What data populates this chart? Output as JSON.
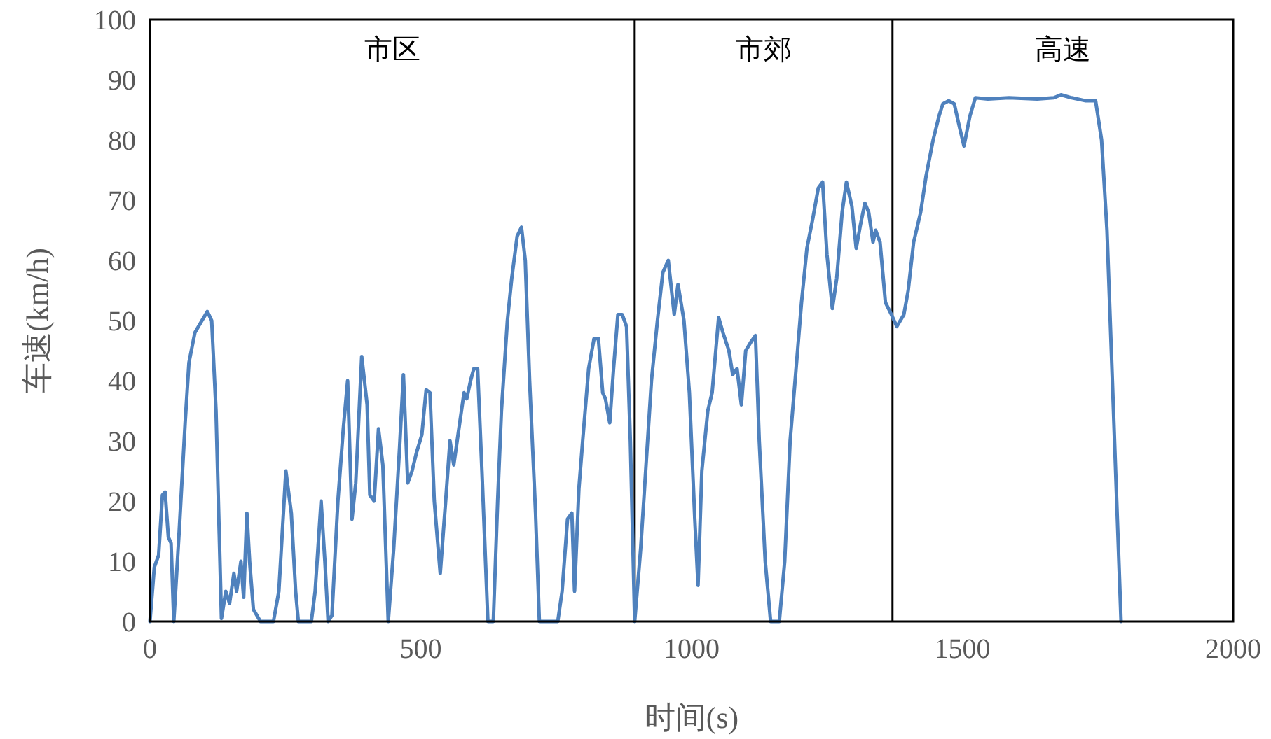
{
  "chart_data": {
    "type": "line",
    "xlabel": "时间(s)",
    "ylabel": "车速(km/h)",
    "xlim": [
      0,
      2000
    ],
    "xticks": [
      0,
      500,
      1000,
      1500,
      2000
    ],
    "ylim": [
      0,
      100
    ],
    "yticks": [
      0,
      10,
      20,
      30,
      40,
      50,
      60,
      70,
      80,
      90,
      100
    ],
    "grid": false,
    "marker": "none",
    "line_style": "solid",
    "ref_lines": [
      {
        "axis": "x",
        "value": 895,
        "color": "#000000"
      },
      {
        "axis": "x",
        "value": 1371,
        "color": "#000000"
      }
    ],
    "annotations": [
      "市区",
      "市郊",
      "高速"
    ],
    "series": [
      {
        "color": "#4f81bd",
        "x": [
          0,
          8,
          16,
          23,
          28,
          34,
          39,
          44,
          54,
          65,
          72,
          83,
          96,
          106,
          114,
          122,
          132,
          140,
          147,
          155,
          160,
          168,
          173,
          179,
          184,
          191,
          204,
          228,
          238,
          251,
          261,
          269,
          274,
          298,
          305,
          316,
          323,
          329,
          336,
          347,
          357,
          365,
          373,
          380,
          391,
          401,
          406,
          414,
          422,
          430,
          440,
          450,
          461,
          468,
          476,
          484,
          492,
          502,
          510,
          517,
          525,
          536,
          546,
          554,
          561,
          572,
          580,
          585,
          592,
          598,
          605,
          613,
          624,
          634,
          642,
          649,
          660,
          668,
          678,
          686,
          693,
          701,
          712,
          719,
          740,
          753,
          761,
          771,
          779,
          784,
          792,
          799,
          810,
          820,
          828,
          836,
          841,
          849,
          856,
          864,
          872,
          880,
          887,
          895,
          906,
          916,
          926,
          937,
          947,
          957,
          968,
          975,
          986,
          996,
          1006,
          1012,
          1019,
          1030,
          1038,
          1050,
          1058,
          1069,
          1076,
          1084,
          1092,
          1100,
          1110,
          1118,
          1125,
          1136,
          1146,
          1162,
          1172,
          1182,
          1193,
          1203,
          1213,
          1224,
          1234,
          1242,
          1250,
          1260,
          1268,
          1278,
          1286,
          1296,
          1304,
          1312,
          1320,
          1327,
          1335,
          1340,
          1348,
          1358,
          1369,
          1379,
          1392,
          1400,
          1410,
          1423,
          1433,
          1446,
          1457,
          1464,
          1475,
          1485,
          1495,
          1503,
          1514,
          1524,
          1547,
          1586,
          1638,
          1669,
          1682,
          1702,
          1728,
          1746,
          1757,
          1767,
          1777,
          1785,
          1793
        ],
        "values": [
          0,
          9,
          11,
          21,
          21.5,
          14,
          13,
          0,
          15,
          33,
          43,
          48,
          50,
          51.5,
          50,
          35,
          0.5,
          5,
          3,
          8,
          5,
          10,
          4,
          18,
          10,
          2,
          0,
          0,
          5,
          25,
          18,
          5,
          0,
          0,
          5,
          20,
          10,
          0,
          1,
          20,
          32,
          40,
          17,
          23,
          44,
          36,
          21,
          20,
          32,
          26,
          0,
          12,
          29,
          41,
          23,
          25,
          28,
          31,
          38.5,
          38,
          20,
          8,
          20,
          30,
          26,
          33,
          38,
          37,
          40,
          42,
          42,
          25,
          0,
          0,
          20,
          35,
          50,
          57,
          64,
          65.5,
          60,
          40,
          18,
          0,
          0,
          0,
          5,
          17,
          18,
          5,
          22,
          30,
          42,
          47,
          47,
          38,
          37,
          33,
          42,
          51,
          51,
          49,
          30,
          0,
          12,
          26,
          40,
          50,
          58,
          60,
          51,
          56,
          50,
          38,
          17,
          6,
          25,
          35,
          38,
          50.5,
          48,
          45,
          41,
          42,
          36,
          45,
          46.5,
          47.5,
          30,
          10,
          0,
          0,
          10,
          30,
          42,
          53,
          62,
          67,
          72,
          73,
          61,
          52,
          57,
          68,
          73,
          69,
          62,
          66,
          69.5,
          68,
          63,
          65,
          63,
          53,
          51,
          49,
          51,
          55,
          63,
          68,
          74,
          80,
          84,
          86,
          86.5,
          86,
          82,
          79,
          84,
          87,
          86.8,
          87,
          86.8,
          87,
          87.5,
          87,
          86.5,
          86.5,
          80,
          65,
          40,
          20,
          0
        ]
      }
    ]
  }
}
